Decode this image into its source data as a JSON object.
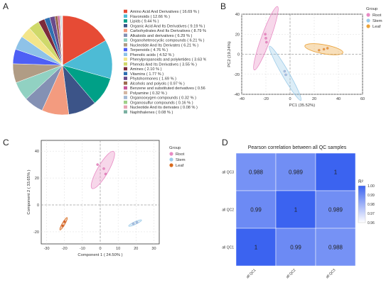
{
  "panels": {
    "a": "A",
    "b": "B",
    "c": "C",
    "d": "D"
  },
  "chart_data": [
    {
      "type": "pie",
      "panel": "A",
      "categories": [
        "Amino Acid And Derivatives ( 16.69 % )",
        "Flavonoids ( 12.66 % )",
        "Lipids ( 9.44 % )",
        "Organic Acid And Its Derivatives ( 9.19 % )",
        "Carbohydrates And Its Derivatives ( 8.79 % )",
        "Alkaloids and derivatives ( 6.29 % )",
        "Organoheterocyclic compounds ( 6.21 % )",
        "Nucleotide And Its Derivates ( 6.21 % )",
        "Terpenoids ( 4.76 % )",
        "Phenolic acids ( 4.52 % )",
        "Phenylpropanoids and polyketides ( 3.63 % )",
        "Phenols And Its Derivatives ( 3.55 % )",
        "Amines ( 2.10 % )",
        "Vitamins ( 1.77 % )",
        "Phytohormones ( 1.69 % )",
        "Alcohols and polyols ( 0.97 % )",
        "Benzene and substituted derivatives ( 0.56 % )",
        "Polyamine ( 0.32 % )",
        "Organooxygen compounds ( 0.32 % )",
        "Organosulfur compounds ( 0.16 % )",
        "Nucleotide And its derivates ( 0.08 % )",
        "Naphthalenes ( 0.08 % )"
      ],
      "values": [
        16.69,
        12.66,
        9.44,
        9.19,
        8.79,
        6.29,
        6.21,
        6.21,
        4.76,
        4.52,
        3.63,
        3.55,
        2.1,
        1.77,
        1.69,
        0.97,
        0.56,
        0.32,
        0.32,
        0.16,
        0.08,
        0.08
      ],
      "colors": [
        "#e64b35",
        "#4dbbd5",
        "#00a087",
        "#3c5488",
        "#f39b7f",
        "#8491b4",
        "#91d1c2",
        "#b09c85",
        "#4e5ff5",
        "#8ec2e8",
        "#f3e58a",
        "#cfd96a",
        "#7c2b3b",
        "#2e6fb0",
        "#6a4a8b",
        "#9c6b4f",
        "#c7559b",
        "#d4b6a3",
        "#a3b8d4",
        "#9ed08a",
        "#e6a2b4",
        "#7ab0a1"
      ]
    },
    {
      "type": "scatter",
      "panel": "B",
      "xlabel": "PC1 (35.52%)",
      "ylabel": "PC2 (19.24%)",
      "xlim": [
        -40,
        60
      ],
      "ylim": [
        -40,
        40
      ],
      "xticks": [
        -40,
        -20,
        0,
        20,
        40,
        60
      ],
      "yticks": [
        -40,
        -20,
        0,
        20,
        40
      ],
      "grid": true,
      "legend_title": "Group",
      "legend_position": "top-right",
      "series": [
        {
          "name": "Root",
          "color": "#e88bc4",
          "points": [
            [
              -20.5,
              20
            ],
            [
              -19.5,
              12
            ],
            [
              -20,
              16
            ]
          ],
          "ellipse": {
            "cx": -20,
            "cy": 16,
            "rx": 28,
            "ry": 4.5,
            "angle_deg": -70
          }
        },
        {
          "name": "Stem",
          "color": "#9ccbe9",
          "points": [
            [
              -4.5,
              -17
            ],
            [
              -3.5,
              -20.5
            ]
          ],
          "ellipse": {
            "cx": -4,
            "cy": -19,
            "rx": 26,
            "ry": 3.5,
            "angle_deg": 60
          }
        },
        {
          "name": "Leaf",
          "color": "#eba33a",
          "points": [
            [
              24,
              4
            ],
            [
              28,
              5
            ],
            [
              31,
              6
            ]
          ],
          "ellipse": {
            "cx": 28,
            "cy": 5,
            "rx": 16,
            "ry": 4.5,
            "angle_deg": 10
          }
        }
      ]
    },
    {
      "type": "scatter",
      "panel": "C",
      "xlabel": "Component 1 ( 24.50% )",
      "ylabel": "Component 2 ( 33.65% )",
      "xlim": [
        -33,
        33
      ],
      "ylim": [
        -29,
        48
      ],
      "xticks": [
        -30,
        -20,
        -10,
        0,
        10,
        20,
        30
      ],
      "yticks": [
        -20,
        0,
        20,
        40
      ],
      "grid": true,
      "legend_title": "Group",
      "legend_position": "top-right",
      "series": [
        {
          "name": "Root",
          "color": "#e88bc4",
          "points": [
            [
              -1.5,
              30
            ],
            [
              2,
              27
            ],
            [
              3,
              23
            ]
          ],
          "ellipse": {
            "cx": 1.5,
            "cy": 26,
            "rx": 12,
            "ry": 4,
            "angle_deg": -60
          }
        },
        {
          "name": "Stem",
          "color": "#9ccbe9",
          "points": [
            [
              18.5,
              -14
            ],
            [
              20.5,
              -13
            ]
          ],
          "ellipse": {
            "cx": 19.5,
            "cy": -13.5,
            "rx": 4,
            "ry": 1,
            "angle_deg": -25
          }
        },
        {
          "name": "Leaf",
          "color": "#d86a1d",
          "points": [
            [
              -21,
              -15.5
            ],
            [
              -20,
              -12.5
            ]
          ],
          "ellipse": {
            "cx": -20.5,
            "cy": -14,
            "rx": 4,
            "ry": 1,
            "angle_deg": -60
          }
        }
      ]
    },
    {
      "type": "heatmap",
      "panel": "D",
      "title": "Pearson correlation between all QC samples",
      "x": [
        "all QC1",
        "all QC2",
        "all QC3"
      ],
      "y": [
        "all QC3",
        "all QC2",
        "all QC1"
      ],
      "values": [
        [
          0.988,
          0.989,
          1
        ],
        [
          0.99,
          1,
          0.989
        ],
        [
          1,
          0.99,
          0.988
        ]
      ],
      "value_labels": [
        [
          "0.988",
          "0.989",
          "1"
        ],
        [
          "0.99",
          "1",
          "0.989"
        ],
        [
          "1",
          "0.99",
          "0.988"
        ]
      ],
      "colorbar": {
        "title": "R²",
        "range": [
          0.96,
          1.0
        ],
        "ticks": [
          "1.00",
          "0.99",
          "0.98",
          "0.97",
          "0.96"
        ],
        "low_color": "#ffffff",
        "high_color": "#3b63f0"
      }
    }
  ]
}
